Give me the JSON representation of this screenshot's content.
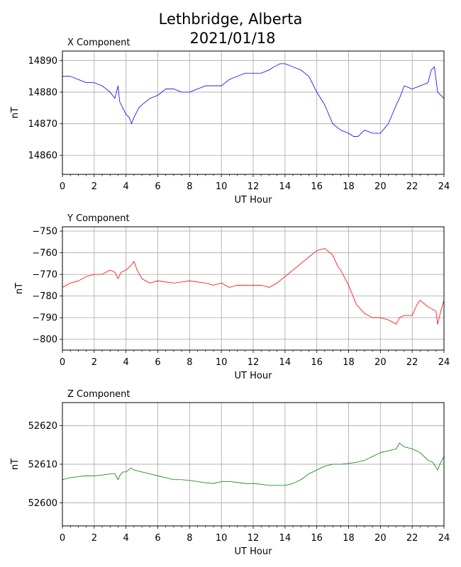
{
  "title": "Lethbridge, Alberta",
  "subtitle": "2021/01/18",
  "chart_data": [
    {
      "type": "line",
      "title": "X Component",
      "xlabel": "UT Hour",
      "ylabel": "nT",
      "xlim": [
        0,
        24
      ],
      "ylim": [
        14854,
        14893
      ],
      "xticks": [
        0,
        2,
        4,
        6,
        8,
        10,
        12,
        14,
        16,
        18,
        20,
        22,
        24
      ],
      "yticks": [
        14860,
        14870,
        14880,
        14890
      ],
      "grid": true,
      "color": "#0000ff",
      "series": [
        {
          "x": [
            0,
            0.5,
            1,
            1.5,
            2,
            2.5,
            3,
            3.3,
            3.5,
            3.6,
            3.8,
            4,
            4.2,
            4.35,
            4.5,
            4.8,
            5,
            5.5,
            6,
            6.5,
            7,
            7.5,
            8,
            8.5,
            9,
            9.5,
            10,
            10.5,
            11,
            11.5,
            12,
            12.5,
            13,
            13.3,
            13.7,
            14,
            14.5,
            15,
            15.5,
            16,
            16.5,
            17,
            17.5,
            18,
            18.3,
            18.6,
            19,
            19.5,
            20,
            20.5,
            21,
            21.2,
            21.5,
            22,
            22.5,
            23,
            23.2,
            23.4,
            23.6,
            23.8,
            24
          ],
          "y": [
            14885,
            14885,
            14884,
            14883,
            14883,
            14882,
            14880,
            14878,
            14882,
            14877,
            14875,
            14873,
            14872,
            14870,
            14872,
            14875,
            14876,
            14878,
            14879,
            14881,
            14881,
            14880,
            14880,
            14881,
            14882,
            14882,
            14882,
            14884,
            14885,
            14886,
            14886,
            14886,
            14887,
            14888,
            14889,
            14889,
            14888,
            14887,
            14885,
            14880,
            14876,
            14870,
            14868,
            14867,
            14866,
            14866,
            14868,
            14867,
            14867,
            14870,
            14876,
            14878,
            14882,
            14881,
            14882,
            14883,
            14887,
            14888,
            14880,
            14879,
            14878
          ]
        }
      ]
    },
    {
      "type": "line",
      "title": "Y Component",
      "xlabel": "UT Hour",
      "ylabel": "nT",
      "xlim": [
        0,
        24
      ],
      "ylim": [
        -805,
        -748
      ],
      "xticks": [
        0,
        2,
        4,
        6,
        8,
        10,
        12,
        14,
        16,
        18,
        20,
        22,
        24
      ],
      "yticks": [
        -800,
        -790,
        -780,
        -770,
        -760,
        -750
      ],
      "grid": true,
      "color": "#ff0000",
      "series": [
        {
          "x": [
            0,
            0.5,
            1,
            1.5,
            2,
            2.5,
            3,
            3.3,
            3.5,
            3.7,
            4,
            4.3,
            4.5,
            4.7,
            5,
            5.5,
            6,
            7,
            8,
            9,
            9.5,
            10,
            10.5,
            11,
            11.5,
            12,
            12.5,
            13,
            13.5,
            14,
            14.5,
            15,
            15.5,
            16,
            16.5,
            17,
            17.3,
            17.5,
            18,
            18.5,
            19,
            19.5,
            20,
            20.5,
            21,
            21.2,
            21.5,
            22,
            22.3,
            22.5,
            23,
            23.5,
            23.6,
            23.8,
            24
          ],
          "y": [
            -776,
            -774,
            -773,
            -771,
            -770,
            -770,
            -768,
            -769,
            -772,
            -769,
            -768,
            -766,
            -764,
            -768,
            -772,
            -774,
            -773,
            -774,
            -773,
            -774,
            -775,
            -774,
            -776,
            -775,
            -775,
            -775,
            -775,
            -776,
            -774,
            -771,
            -768,
            -765,
            -762,
            -759,
            -758,
            -761,
            -766,
            -768,
            -775,
            -784,
            -788,
            -790,
            -790,
            -791,
            -793,
            -790,
            -789,
            -789,
            -784,
            -782,
            -785,
            -787,
            -793,
            -787,
            -782
          ]
        }
      ]
    },
    {
      "type": "line",
      "title": "Z Component",
      "xlabel": "UT Hour",
      "ylabel": "nT",
      "xlim": [
        0,
        24
      ],
      "ylim": [
        52594,
        52626
      ],
      "xticks": [
        0,
        2,
        4,
        6,
        8,
        10,
        12,
        14,
        16,
        18,
        20,
        22,
        24
      ],
      "yticks": [
        52600,
        52610,
        52620
      ],
      "grid": true,
      "color": "#008000",
      "series": [
        {
          "x": [
            0,
            0.5,
            1,
            1.5,
            2,
            2.5,
            3,
            3.3,
            3.5,
            3.6,
            3.8,
            4,
            4.3,
            4.5,
            5,
            5.5,
            6,
            6.5,
            7,
            7.5,
            8,
            8.5,
            9,
            9.5,
            10,
            10.5,
            11,
            11.5,
            12,
            12.5,
            13,
            13.5,
            14,
            14.5,
            15,
            15.5,
            16,
            16.5,
            17,
            17.5,
            18,
            18.5,
            19,
            19.5,
            20,
            20.5,
            21,
            21.2,
            21.5,
            22,
            22.5,
            23,
            23.3,
            23.6,
            23.8,
            24
          ],
          "y": [
            52606,
            52606.5,
            52606.8,
            52607,
            52607,
            52607.2,
            52607.5,
            52607.5,
            52606,
            52607,
            52608,
            52608,
            52609,
            52608.5,
            52608,
            52607.5,
            52607,
            52606.5,
            52606,
            52606,
            52605.8,
            52605.5,
            52605.2,
            52605,
            52605.5,
            52605.5,
            52605.3,
            52605,
            52605,
            52604.8,
            52604.5,
            52604.5,
            52604.5,
            52605,
            52606,
            52607.5,
            52608.5,
            52609.5,
            52610,
            52610,
            52610.2,
            52610.5,
            52611,
            52612,
            52613,
            52613.5,
            52614,
            52615.5,
            52614.5,
            52614,
            52613,
            52611,
            52610.5,
            52608.5,
            52610.5,
            52612
          ]
        }
      ]
    }
  ]
}
